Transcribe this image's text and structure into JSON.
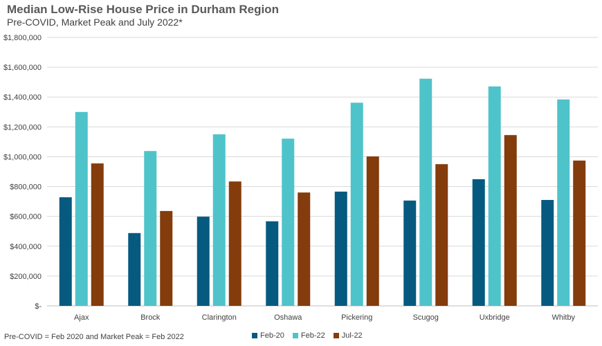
{
  "chart_data": {
    "type": "bar",
    "title": "Median Low-Rise House Price in Durham Region",
    "subtitle": "Pre-COVID, Market Peak and July 2022*",
    "footnote": "Pre-COVID = Feb 2020 and Market Peak = Feb 2022",
    "categories": [
      "Ajax",
      "Brock",
      "Clarington",
      "Oshawa",
      "Pickering",
      "Scugog",
      "Uxbridge",
      "Whitby"
    ],
    "series": [
      {
        "name": "Feb-20",
        "color": "#065A7F",
        "values": [
          728000,
          488000,
          598000,
          567000,
          766000,
          706000,
          849000,
          710000
        ]
      },
      {
        "name": "Feb-22",
        "color": "#4FC3CA",
        "values": [
          1300000,
          1038000,
          1150000,
          1121000,
          1362000,
          1523000,
          1471000,
          1384000
        ]
      },
      {
        "name": "Jul-22",
        "color": "#843C0C",
        "values": [
          955000,
          636000,
          834000,
          760000,
          1002000,
          950000,
          1145000,
          974000
        ]
      }
    ],
    "ylim": [
      0,
      1800000
    ],
    "yticks": [
      0,
      200000,
      400000,
      600000,
      800000,
      1000000,
      1200000,
      1400000,
      1600000,
      1800000
    ],
    "ytick_labels": [
      "$-",
      "$200,000",
      "$400,000",
      "$600,000",
      "$800,000",
      "$1,000,000",
      "$1,200,000",
      "$1,400,000",
      "$1,600,000",
      "$1,800,000"
    ],
    "grid": true,
    "legend_position": "bottom"
  }
}
